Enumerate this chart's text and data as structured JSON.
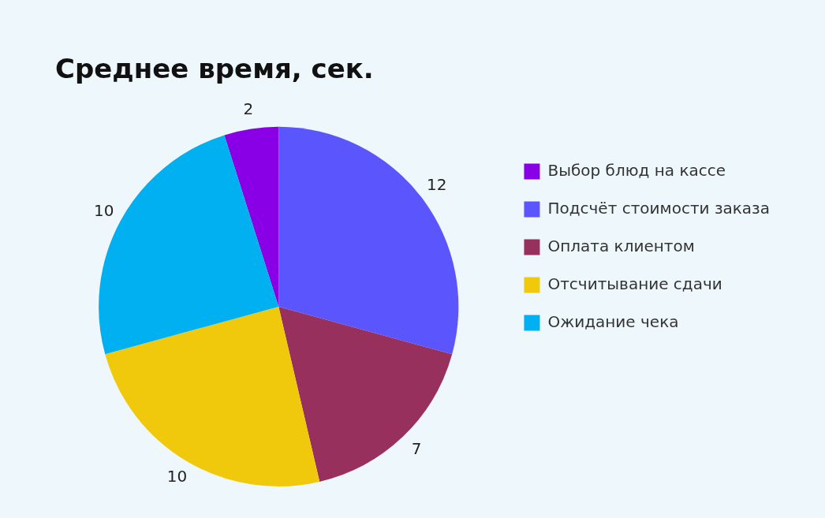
{
  "chart_data": {
    "type": "pie",
    "title": "Среднее время, сек.",
    "categories": [
      "Выбор блюд на кассе",
      "Подсчёт стоимости заказа",
      "Оплата клиентом",
      "Отсчитывание сдачи",
      "Ожидание чека"
    ],
    "values": [
      2,
      12,
      7,
      10,
      10
    ],
    "colors": [
      "#8a00e6",
      "#5b55fd",
      "#98305e",
      "#f0c90c",
      "#00b0f0"
    ],
    "data_labels": true,
    "legend": "right"
  }
}
